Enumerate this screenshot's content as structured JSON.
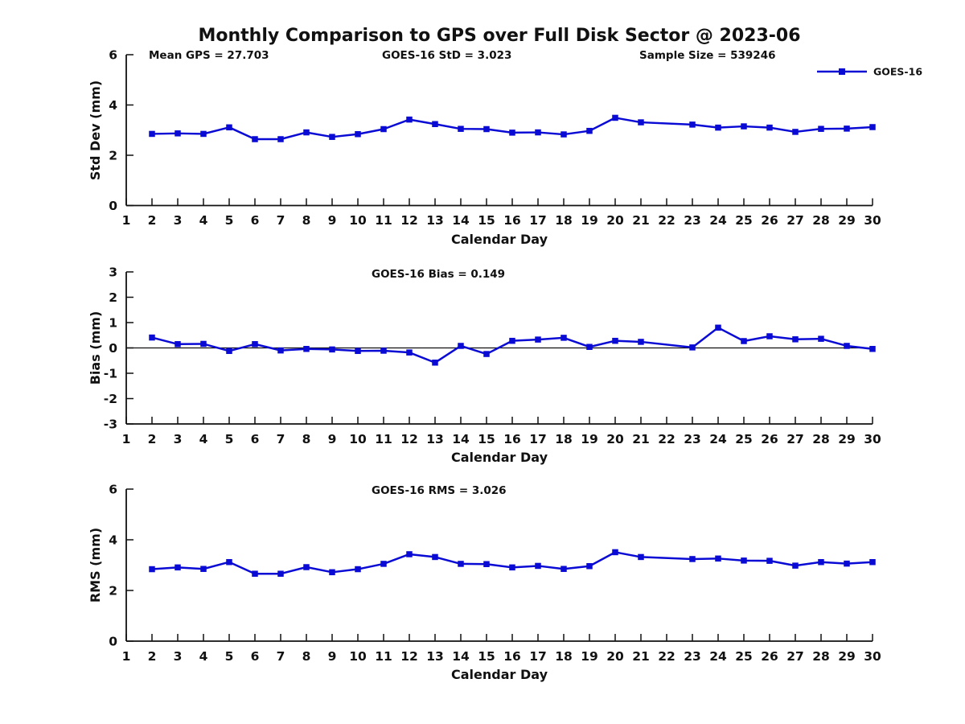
{
  "title": "Monthly Comparison to GPS over Full Disk Sector @ 2023-06",
  "colors": {
    "series": "#0A0AD5",
    "axis": "#111111",
    "background": "#ffffff"
  },
  "days": [
    2,
    3,
    4,
    5,
    6,
    7,
    8,
    9,
    10,
    11,
    12,
    13,
    14,
    15,
    16,
    17,
    18,
    19,
    20,
    21,
    23,
    24,
    25,
    26,
    27,
    28,
    29,
    30
  ],
  "chart_data": [
    {
      "type": "line",
      "title": "",
      "ylabel": "Std Dev (mm)",
      "xlabel": "Calendar Day",
      "ylim": [
        0,
        6
      ],
      "yticks": [
        0,
        2,
        4,
        6
      ],
      "xlim": [
        1,
        30
      ],
      "xticks": [
        1,
        2,
        3,
        4,
        5,
        6,
        7,
        8,
        9,
        10,
        11,
        12,
        13,
        14,
        15,
        16,
        17,
        18,
        19,
        20,
        21,
        22,
        23,
        24,
        25,
        26,
        27,
        28,
        29,
        30
      ],
      "grid": false,
      "legend": [
        "GOES-16"
      ],
      "legend_position": "top-right-outside",
      "annotations": [
        "Mean GPS = 27.703",
        "GOES-16 StD = 3.023",
        "Sample Size = 539246"
      ],
      "x": [
        2,
        3,
        4,
        5,
        6,
        7,
        8,
        9,
        10,
        11,
        12,
        13,
        14,
        15,
        16,
        17,
        18,
        19,
        20,
        21,
        23,
        24,
        25,
        26,
        27,
        28,
        29,
        30
      ],
      "series": [
        {
          "name": "GOES-16",
          "values": [
            2.85,
            2.87,
            2.85,
            3.11,
            2.64,
            2.64,
            2.91,
            2.73,
            2.84,
            3.04,
            3.42,
            3.24,
            3.05,
            3.04,
            2.9,
            2.91,
            2.83,
            2.97,
            3.49,
            3.31,
            3.22,
            3.1,
            3.15,
            3.1,
            2.93,
            3.05,
            3.06,
            3.12
          ]
        }
      ]
    },
    {
      "type": "line",
      "title": "",
      "ylabel": "Bias (mm)",
      "xlabel": "Calendar Day",
      "ylim": [
        -3,
        3
      ],
      "yticks": [
        -3,
        -2,
        -1,
        0,
        1,
        2,
        3
      ],
      "xlim": [
        1,
        30
      ],
      "xticks": [
        1,
        2,
        3,
        4,
        5,
        6,
        7,
        8,
        9,
        10,
        11,
        12,
        13,
        14,
        15,
        16,
        17,
        18,
        19,
        20,
        21,
        22,
        23,
        24,
        25,
        26,
        27,
        28,
        29,
        30
      ],
      "grid": false,
      "zero_line": true,
      "annotations": [
        "GOES-16 Bias = 0.149"
      ],
      "x": [
        2,
        3,
        4,
        5,
        6,
        7,
        8,
        9,
        10,
        11,
        12,
        13,
        14,
        15,
        16,
        17,
        18,
        19,
        20,
        21,
        23,
        24,
        25,
        26,
        27,
        28,
        29,
        30
      ],
      "series": [
        {
          "name": "GOES-16",
          "values": [
            0.41,
            0.15,
            0.16,
            -0.12,
            0.15,
            -0.1,
            -0.04,
            -0.06,
            -0.12,
            -0.11,
            -0.18,
            -0.58,
            0.08,
            -0.24,
            0.28,
            0.33,
            0.4,
            0.04,
            0.28,
            0.24,
            0.02,
            0.8,
            0.27,
            0.46,
            0.34,
            0.36,
            0.08,
            -0.04
          ]
        }
      ]
    },
    {
      "type": "line",
      "title": "",
      "ylabel": "RMS (mm)",
      "xlabel": "Calendar Day",
      "ylim": [
        0,
        6
      ],
      "yticks": [
        0,
        2,
        4,
        6
      ],
      "xlim": [
        1,
        30
      ],
      "xticks": [
        1,
        2,
        3,
        4,
        5,
        6,
        7,
        8,
        9,
        10,
        11,
        12,
        13,
        14,
        15,
        16,
        17,
        18,
        19,
        20,
        21,
        22,
        23,
        24,
        25,
        26,
        27,
        28,
        29,
        30
      ],
      "grid": false,
      "annotations": [
        "GOES-16 RMS = 3.026"
      ],
      "x": [
        2,
        3,
        4,
        5,
        6,
        7,
        8,
        9,
        10,
        11,
        12,
        13,
        14,
        15,
        16,
        17,
        18,
        19,
        20,
        21,
        23,
        24,
        25,
        26,
        27,
        28,
        29,
        30
      ],
      "series": [
        {
          "name": "GOES-16",
          "values": [
            2.84,
            2.91,
            2.85,
            3.12,
            2.66,
            2.66,
            2.92,
            2.72,
            2.84,
            3.05,
            3.43,
            3.32,
            3.05,
            3.04,
            2.91,
            2.97,
            2.85,
            2.96,
            3.51,
            3.32,
            3.24,
            3.26,
            3.18,
            3.17,
            2.98,
            3.12,
            3.06,
            3.12
          ]
        }
      ]
    }
  ]
}
